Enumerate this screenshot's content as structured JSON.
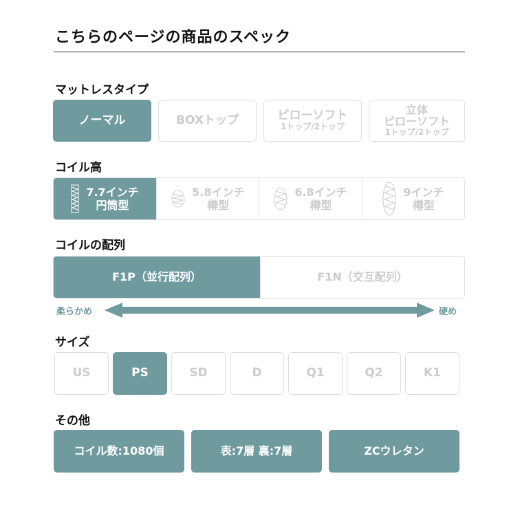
{
  "title": "こちらのページの商品のスペック",
  "accent": "#6f9a9e",
  "mattress": {
    "label": "マットレスタイプ",
    "options": [
      {
        "main": "ノーマル",
        "selected": true
      },
      {
        "main": "BOXトップ",
        "selected": false
      },
      {
        "main": "ピローソフト",
        "sub": "1トップ/2トップ",
        "selected": false
      },
      {
        "pre": "立体",
        "main": "ピローソフト",
        "sub": "1トップ/2トップ",
        "selected": false
      }
    ]
  },
  "coil_height": {
    "label": "コイル高",
    "options": [
      {
        "l1": "7.7インチ",
        "l2": "円筒型",
        "icon": "cylinder-coil-icon",
        "selected": true
      },
      {
        "l1": "5.8インチ",
        "l2": "樽型",
        "icon": "barrel-coil-icon",
        "selected": false
      },
      {
        "l1": "6.8インチ",
        "l2": "樽型",
        "icon": "barrel-coil-icon",
        "selected": false
      },
      {
        "l1": "9インチ",
        "l2": "樽型",
        "icon": "barrel-coil-icon",
        "selected": false
      }
    ]
  },
  "arrangement": {
    "label": "コイルの配列",
    "options": [
      {
        "text": "F1P（並行配列）",
        "selected": true
      },
      {
        "text": "F1N（交互配列）",
        "selected": false
      }
    ],
    "soft": "柔らかめ",
    "hard": "硬め"
  },
  "size": {
    "label": "サイズ",
    "options": [
      "US",
      "PS",
      "SD",
      "D",
      "Q1",
      "Q2",
      "K1"
    ],
    "selected": "PS"
  },
  "other": {
    "label": "その他",
    "items": [
      "コイル数:1080個",
      "表:7層 裏:7層",
      "ZCウレタン"
    ]
  }
}
